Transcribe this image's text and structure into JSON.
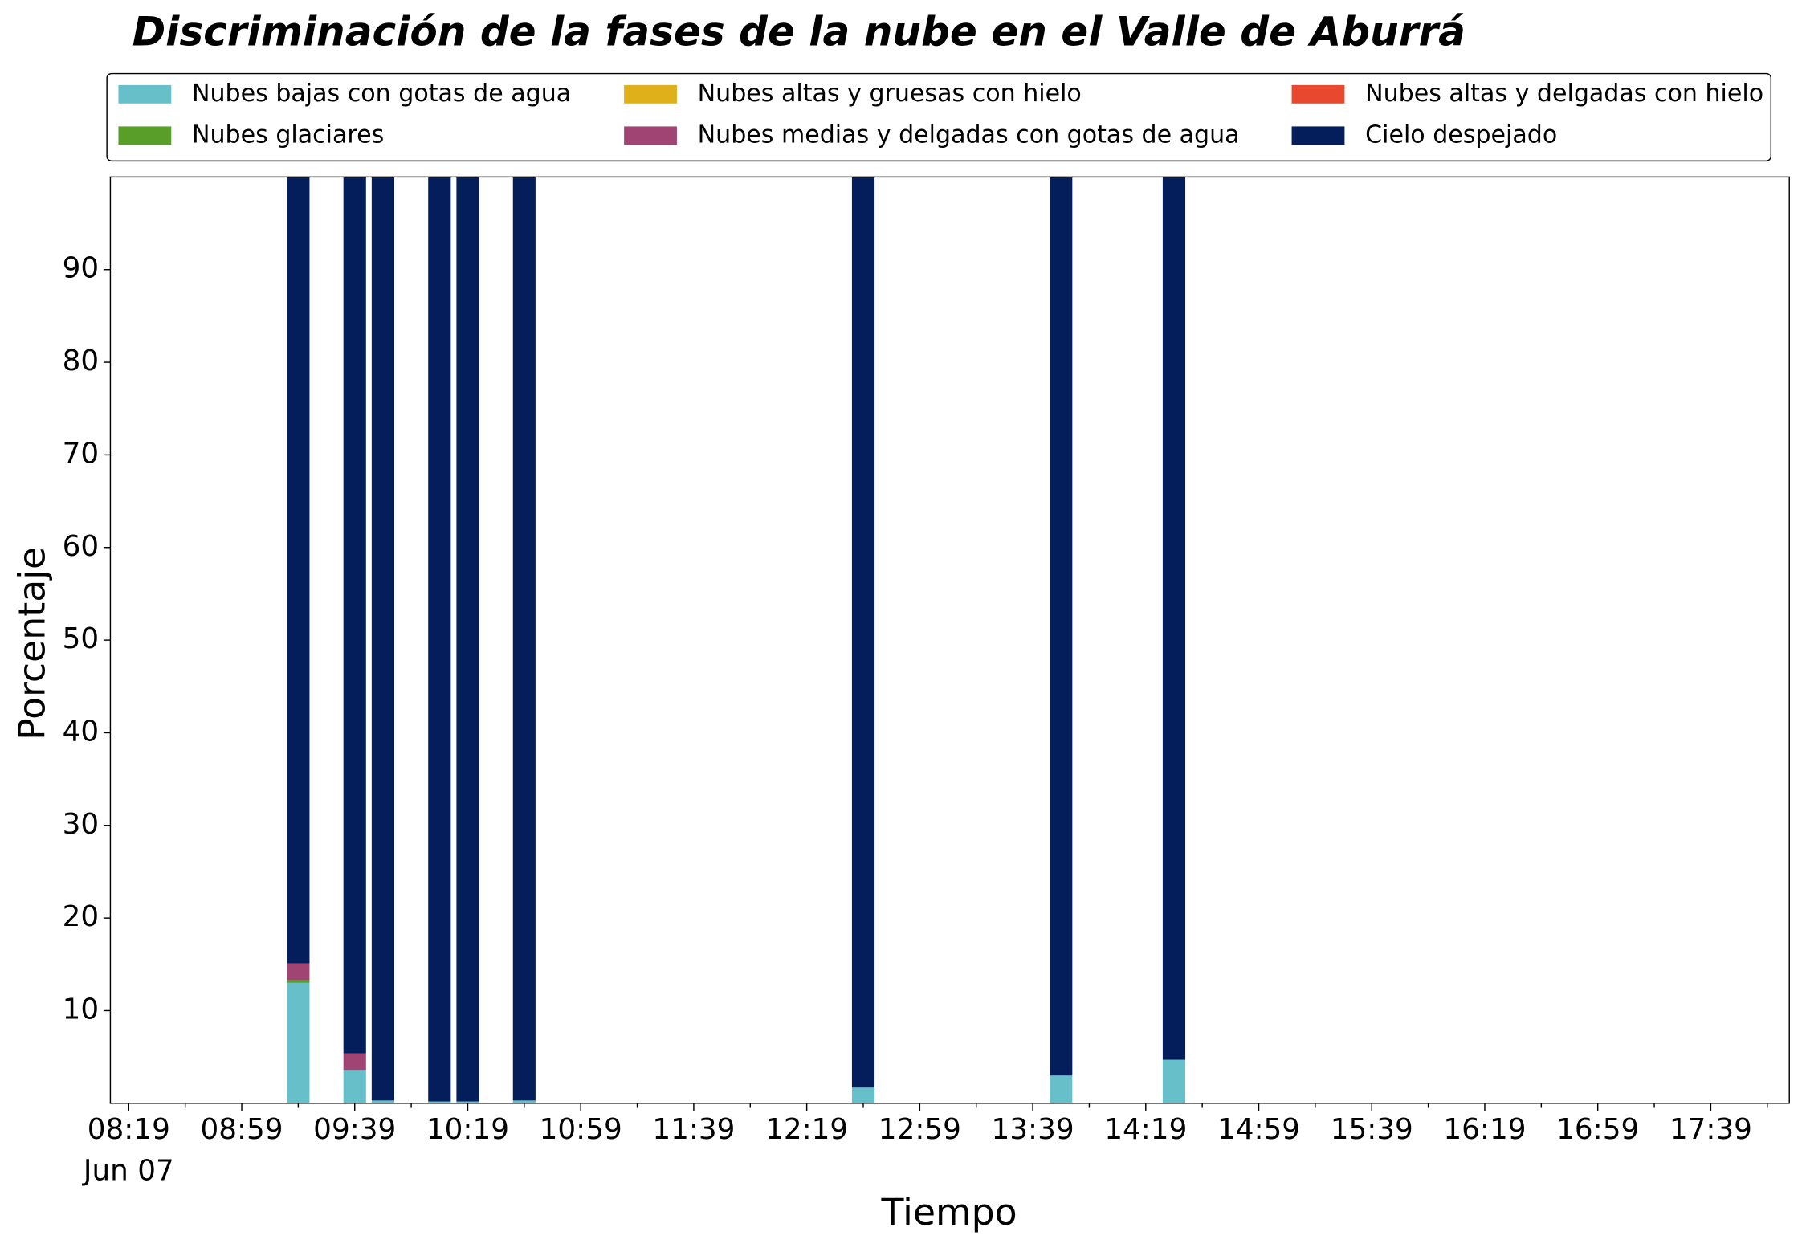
{
  "chart_data": {
    "type": "stacked_bar",
    "title": "Discriminación de la fases de la nube en el Valle de Aburrá",
    "x_label": "Tiempo",
    "y_label": "Porcentaje",
    "x_date_label": "Jun 07",
    "x": [
      559,
      579,
      589,
      609,
      619,
      639,
      759,
      829,
      869
    ],
    "bar_width": 8,
    "series": [
      {
        "name": "Nubes bajas con gotas de agua",
        "color": "#67bfca",
        "values": [
          13.0,
          3.6,
          0.3,
          0.2,
          0.2,
          0.3,
          1.7,
          3.0,
          4.7
        ]
      },
      {
        "name": "Nubes glaciares",
        "color": "#5a9e2a",
        "values": [
          0.3,
          0,
          0,
          0,
          0,
          0,
          0,
          0,
          0
        ]
      },
      {
        "name": "Nubes altas y gruesas con hielo",
        "color": "#e0b01a",
        "values": [
          0,
          0,
          0,
          0,
          0,
          0,
          0,
          0,
          0
        ]
      },
      {
        "name": "Nubes medias y delgadas con gotas de agua",
        "color": "#a04474",
        "values": [
          1.8,
          1.8,
          0,
          0,
          0,
          0,
          0,
          0,
          0
        ]
      },
      {
        "name": "Nubes altas y delgadas con hielo",
        "color": "#e8482e",
        "values": [
          0,
          0,
          0,
          0,
          0,
          0,
          0,
          0,
          0
        ]
      },
      {
        "name": "Cielo despejado",
        "color": "#041e5c",
        "values": [
          84.9,
          94.6,
          99.7,
          99.8,
          99.8,
          99.7,
          98.3,
          97.0,
          95.3
        ]
      }
    ],
    "xlim": [
      492.5,
      1086.8
    ],
    "xticks": [
      {
        "value": 499,
        "label": "08:19"
      },
      {
        "value": 539,
        "label": "08:59"
      },
      {
        "value": 579,
        "label": "09:39"
      },
      {
        "value": 619,
        "label": "10:19"
      },
      {
        "value": 659,
        "label": "10:59"
      },
      {
        "value": 699,
        "label": "11:39"
      },
      {
        "value": 739,
        "label": "12:19"
      },
      {
        "value": 779,
        "label": "12:59"
      },
      {
        "value": 819,
        "label": "13:39"
      },
      {
        "value": 859,
        "label": "14:19"
      },
      {
        "value": 899,
        "label": "14:59"
      },
      {
        "value": 939,
        "label": "15:39"
      },
      {
        "value": 979,
        "label": "16:19"
      },
      {
        "value": 1019,
        "label": "16:59"
      },
      {
        "value": 1059,
        "label": "17:39"
      }
    ],
    "xminorticks": [
      519,
      559,
      599,
      639,
      679,
      719,
      759,
      799,
      839,
      879,
      919,
      959,
      999,
      1039,
      1079
    ],
    "ylim": [
      0,
      100
    ],
    "yticks": [
      10,
      20,
      30,
      40,
      50,
      60,
      70,
      80,
      90
    ],
    "legend": "top",
    "legend_columns": 3
  }
}
